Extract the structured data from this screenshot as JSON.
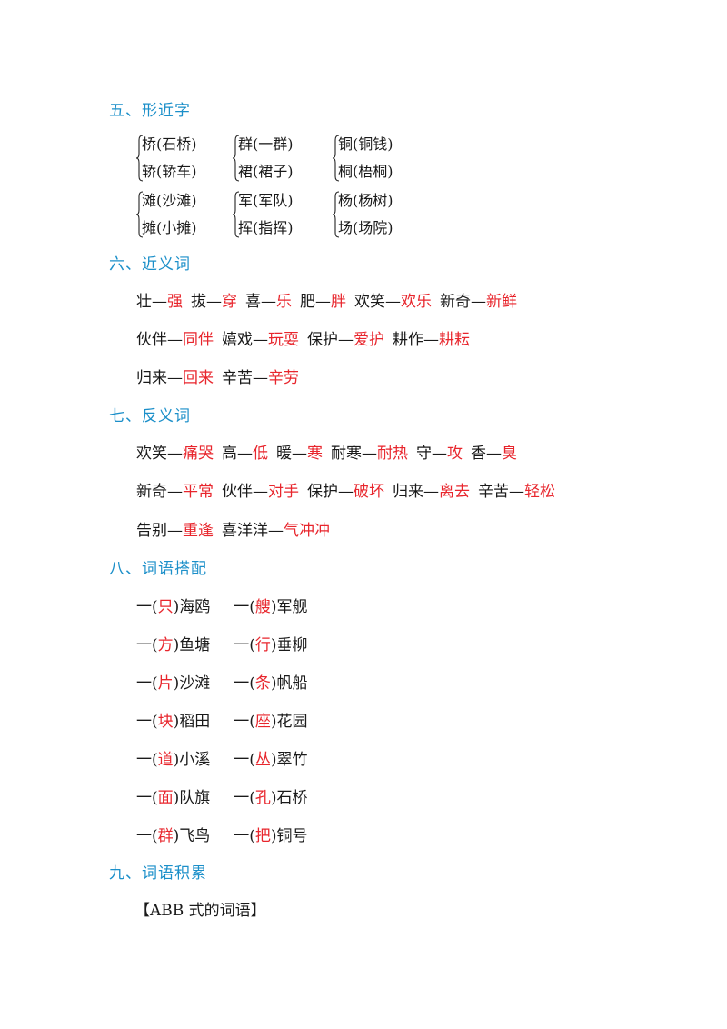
{
  "sections": {
    "s5": "五、形近字",
    "s6": "六、近义词",
    "s7": "七、反义词",
    "s8": "八、词语搭配",
    "s9": "九、词语积累"
  },
  "xingjin": [
    [
      "桥(石桥)",
      "轿(轿车)"
    ],
    [
      "群(一群)",
      "裙(裙子)"
    ],
    [
      "铜(铜钱)",
      "桐(梧桐)"
    ],
    [
      "滩(沙滩)",
      "摊(小摊)"
    ],
    [
      "军(军队)",
      "挥(指挥)"
    ],
    [
      "杨(杨树)",
      "场(场院)"
    ]
  ],
  "jinyi": [
    [
      [
        "壮—",
        "强"
      ],
      [
        "拔—",
        "穿"
      ],
      [
        "喜—",
        "乐"
      ],
      [
        "肥—",
        "胖"
      ],
      [
        "欢笑—",
        "欢乐"
      ],
      [
        "新奇—",
        "新鲜"
      ]
    ],
    [
      [
        "伙伴—",
        "同伴"
      ],
      [
        "嬉戏—",
        "玩耍"
      ],
      [
        "保护—",
        "爱护"
      ],
      [
        "耕作—",
        "耕耘"
      ]
    ],
    [
      [
        "归来—",
        "回来"
      ],
      [
        "辛苦—",
        "辛劳"
      ]
    ]
  ],
  "fanyi": [
    [
      [
        "欢笑—",
        "痛哭"
      ],
      [
        "高—",
        "低"
      ],
      [
        "暖—",
        "寒"
      ],
      [
        "耐寒—",
        "耐热"
      ],
      [
        "守—",
        "攻"
      ],
      [
        "香—",
        "臭"
      ]
    ],
    [
      [
        "新奇—",
        "平常"
      ],
      [
        "伙伴—",
        "对手"
      ],
      [
        "保护—",
        "破坏"
      ],
      [
        "归来—",
        "离去"
      ],
      [
        "辛苦—",
        "轻松"
      ]
    ],
    [
      [
        "告别—",
        "重逢"
      ],
      [
        "喜洋洋—",
        "气冲冲"
      ]
    ]
  ],
  "dapei": [
    [
      [
        "一(",
        "只",
        ")海鸥"
      ],
      [
        "一(",
        "艘",
        ")军舰"
      ]
    ],
    [
      [
        "一(",
        "方",
        ")鱼塘"
      ],
      [
        "一(",
        "行",
        ")垂柳"
      ]
    ],
    [
      [
        "一(",
        "片",
        ")沙滩"
      ],
      [
        "一(",
        "条",
        ")帆船"
      ]
    ],
    [
      [
        "一(",
        "块",
        ")稻田"
      ],
      [
        "一(",
        "座",
        ")花园"
      ]
    ],
    [
      [
        "一(",
        "道",
        ")小溪"
      ],
      [
        "一(",
        "丛",
        ")翠竹"
      ]
    ],
    [
      [
        "一(",
        "面",
        ")队旗"
      ],
      [
        "一(",
        "孔",
        ")石桥"
      ]
    ],
    [
      [
        "一(",
        "群",
        ")飞鸟"
      ],
      [
        "一(",
        "把",
        ")铜号"
      ]
    ]
  ],
  "abb_label": "【ABB 式的词语】"
}
